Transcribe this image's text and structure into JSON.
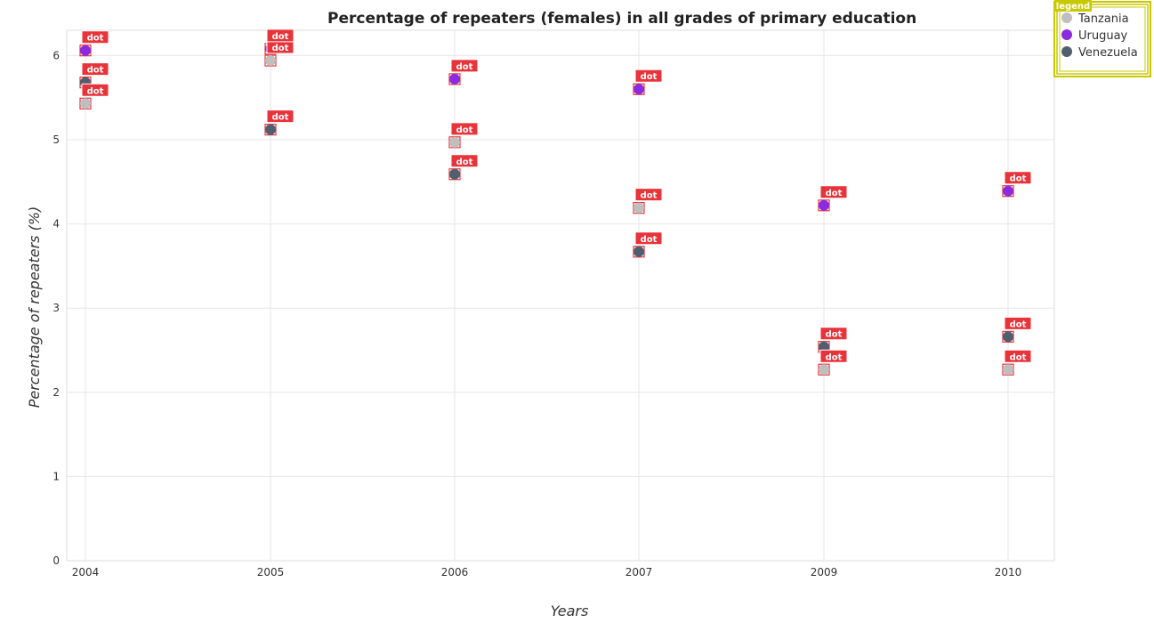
{
  "colors": {
    "tanzania": "#bfbfbf",
    "uruguay": "#8a2be2",
    "venezuela": "#4f5f6f",
    "annotation_fill": "#e8333a",
    "annotation_stroke": "#ffffff",
    "legend_border": "#c8c800",
    "legend_title_fill": "#c8c800",
    "grid": "#e6e6e6"
  },
  "chart_data": {
    "type": "scatter",
    "title": "Percentage of repeaters (females) in all grades of primary education",
    "xlabel": "Years",
    "ylabel": "Percentage of repeaters (%)",
    "categories": [
      "2004",
      "2005",
      "2006",
      "2007",
      "2009",
      "2010"
    ],
    "ylim": [
      0,
      6.3
    ],
    "yticks": [
      "0",
      "1",
      "2",
      "3",
      "4",
      "5",
      "6"
    ],
    "grid": true,
    "legend_title": "legend",
    "legend_placement": "top-right",
    "annotation_label": "dot",
    "series": [
      {
        "name": "Tanzania",
        "values": [
          5.43,
          5.94,
          4.97,
          4.19,
          2.27,
          2.27
        ]
      },
      {
        "name": "Uruguay",
        "values": [
          6.06,
          6.08,
          5.72,
          5.6,
          4.22,
          4.39
        ]
      },
      {
        "name": "Venezuela",
        "values": [
          5.68,
          5.12,
          4.59,
          3.67,
          2.54,
          2.66
        ]
      }
    ]
  }
}
